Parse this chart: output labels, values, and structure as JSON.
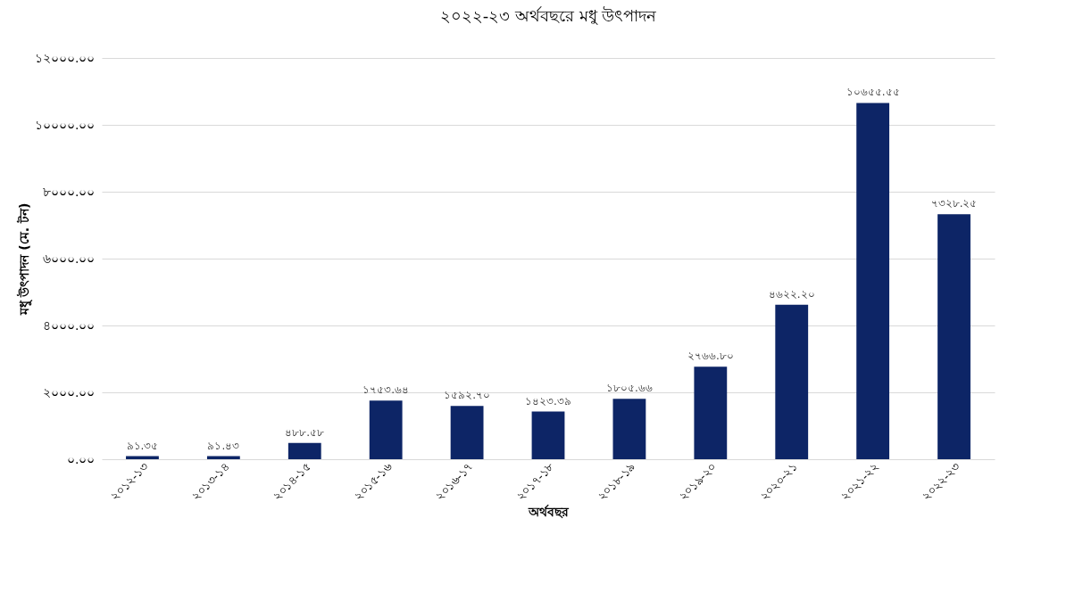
{
  "chart_data": {
    "type": "bar",
    "title": "২০২২-২৩ অর্থবছরে মধু উৎপাদন",
    "xlabel": "অর্থবছর",
    "ylabel": "মধু উৎপাদন (মে. টন)",
    "categories": [
      "২০১২-১৩",
      "২০১৩-১৪",
      "২০১৪-১৫",
      "২০১৫-১৬",
      "২০১৬-১৭",
      "২০১৭-১৮",
      "২০১৮-১৯",
      "২০১৯-২০",
      "২০২০-২১",
      "২০২১-২২",
      "২০২২-২৩"
    ],
    "values": [
      91.35,
      91.43,
      488.58,
      1753.64,
      1592.7,
      1423.39,
      1805.66,
      2766.8,
      4622.2,
      10655.55,
      7328.25
    ],
    "value_labels": [
      "৯১.৩৫",
      "৯১.৪৩",
      "৪৮৮.৫৮",
      "১৭৫৩.৬৪",
      "১৫৯২.৭০",
      "১৪২৩.৩৯",
      "১৮০৫.৬৬",
      "২৭৬৬.৮০",
      "৪৬২২.২০",
      "১০৬৫৫.৫৫",
      "৭৩২৮.২৫"
    ],
    "color": "#0d2566",
    "ylim": [
      0,
      12000
    ],
    "yticks": [
      {
        "value": 0,
        "label": "০.০০"
      },
      {
        "value": 2000,
        "label": "২০০০.০০"
      },
      {
        "value": 4000,
        "label": "৪০০০.০০"
      },
      {
        "value": 6000,
        "label": "৬০০০.০০"
      },
      {
        "value": 8000,
        "label": "৮০০০.০০"
      },
      {
        "value": 10000,
        "label": "১০০০০.০০"
      },
      {
        "value": 12000,
        "label": "১২০০০.০০"
      }
    ],
    "grid": "y"
  }
}
